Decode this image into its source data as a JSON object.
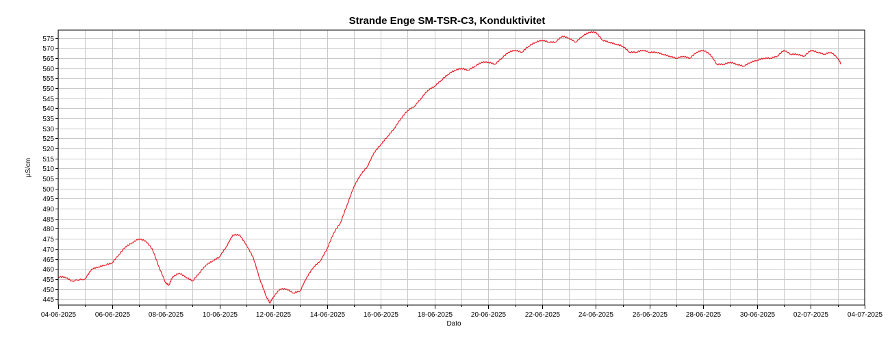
{
  "chart_data": {
    "type": "line",
    "title": "Strande Enge SM-TSR-C3, Konduktivitet",
    "xlabel": "Dato",
    "ylabel": "µS/cm",
    "ylim": [
      442,
      579
    ],
    "xlim": [
      "2025-06-04",
      "2025-07-04"
    ],
    "y_ticks": [
      445,
      450,
      455,
      460,
      465,
      470,
      475,
      480,
      485,
      490,
      495,
      500,
      505,
      510,
      515,
      520,
      525,
      530,
      535,
      540,
      545,
      550,
      555,
      560,
      565,
      570,
      575
    ],
    "x_ticks": [
      "04-06-2025",
      "06-06-2025",
      "08-06-2025",
      "10-06-2025",
      "12-06-2025",
      "14-06-2025",
      "16-06-2025",
      "18-06-2025",
      "20-06-2025",
      "22-06-2025",
      "24-06-2025",
      "26-06-2025",
      "28-06-2025",
      "30-06-2025",
      "02-07-2025",
      "04-07-2025"
    ],
    "grid": true,
    "series": [
      {
        "color": "#e8202a",
        "points": [
          [
            "2025-06-04T00:00",
            456
          ],
          [
            "2025-06-04T06:00",
            456
          ],
          [
            "2025-06-04T12:00",
            454
          ],
          [
            "2025-06-05T00:00",
            455
          ],
          [
            "2025-06-05T06:00",
            460
          ],
          [
            "2025-06-05T12:00",
            461
          ],
          [
            "2025-06-05T18:00",
            462
          ],
          [
            "2025-06-06T00:00",
            463
          ],
          [
            "2025-06-06T06:00",
            467
          ],
          [
            "2025-06-06T12:00",
            471
          ],
          [
            "2025-06-06T18:00",
            473
          ],
          [
            "2025-06-07T00:00",
            475
          ],
          [
            "2025-06-07T06:00",
            474
          ],
          [
            "2025-06-07T12:00",
            470
          ],
          [
            "2025-06-07T18:00",
            461
          ],
          [
            "2025-06-08T00:00",
            453
          ],
          [
            "2025-06-08T03:00",
            452
          ],
          [
            "2025-06-08T06:00",
            456
          ],
          [
            "2025-06-08T12:00",
            458
          ],
          [
            "2025-06-08T18:00",
            456
          ],
          [
            "2025-06-09T00:00",
            454
          ],
          [
            "2025-06-09T06:00",
            458
          ],
          [
            "2025-06-09T12:00",
            462
          ],
          [
            "2025-06-09T18:00",
            464
          ],
          [
            "2025-06-10T00:00",
            466
          ],
          [
            "2025-06-10T06:00",
            471
          ],
          [
            "2025-06-10T12:00",
            477
          ],
          [
            "2025-06-10T18:00",
            477
          ],
          [
            "2025-06-11T00:00",
            472
          ],
          [
            "2025-06-11T06:00",
            466
          ],
          [
            "2025-06-11T12:00",
            455
          ],
          [
            "2025-06-11T18:00",
            446
          ],
          [
            "2025-06-11T21:00",
            443
          ],
          [
            "2025-06-12T00:00",
            446
          ],
          [
            "2025-06-12T06:00",
            450
          ],
          [
            "2025-06-12T12:00",
            450
          ],
          [
            "2025-06-12T18:00",
            448
          ],
          [
            "2025-06-13T00:00",
            449
          ],
          [
            "2025-06-13T06:00",
            456
          ],
          [
            "2025-06-13T12:00",
            461
          ],
          [
            "2025-06-13T18:00",
            464
          ],
          [
            "2025-06-14T00:00",
            470
          ],
          [
            "2025-06-14T06:00",
            478
          ],
          [
            "2025-06-14T12:00",
            483
          ],
          [
            "2025-06-14T18:00",
            492
          ],
          [
            "2025-06-15T00:00",
            501
          ],
          [
            "2025-06-15T06:00",
            507
          ],
          [
            "2025-06-15T12:00",
            511
          ],
          [
            "2025-06-15T18:00",
            518
          ],
          [
            "2025-06-16T00:00",
            522
          ],
          [
            "2025-06-16T06:00",
            526
          ],
          [
            "2025-06-16T12:00",
            530
          ],
          [
            "2025-06-16T18:00",
            535
          ],
          [
            "2025-06-17T00:00",
            539
          ],
          [
            "2025-06-17T06:00",
            541
          ],
          [
            "2025-06-17T12:00",
            545
          ],
          [
            "2025-06-17T18:00",
            549
          ],
          [
            "2025-06-18T00:00",
            551
          ],
          [
            "2025-06-18T06:00",
            554
          ],
          [
            "2025-06-18T12:00",
            557
          ],
          [
            "2025-06-18T18:00",
            559
          ],
          [
            "2025-06-19T00:00",
            560
          ],
          [
            "2025-06-19T06:00",
            559
          ],
          [
            "2025-06-19T12:00",
            561
          ],
          [
            "2025-06-19T18:00",
            563
          ],
          [
            "2025-06-20T00:00",
            563
          ],
          [
            "2025-06-20T06:00",
            562
          ],
          [
            "2025-06-20T12:00",
            565
          ],
          [
            "2025-06-20T18:00",
            568
          ],
          [
            "2025-06-21T00:00",
            569
          ],
          [
            "2025-06-21T06:00",
            568
          ],
          [
            "2025-06-21T12:00",
            571
          ],
          [
            "2025-06-21T18:00",
            573
          ],
          [
            "2025-06-22T00:00",
            574
          ],
          [
            "2025-06-22T06:00",
            573
          ],
          [
            "2025-06-22T12:00",
            573
          ],
          [
            "2025-06-22T18:00",
            576
          ],
          [
            "2025-06-23T00:00",
            575
          ],
          [
            "2025-06-23T06:00",
            573
          ],
          [
            "2025-06-23T12:00",
            576
          ],
          [
            "2025-06-23T18:00",
            578
          ],
          [
            "2025-06-24T00:00",
            578
          ],
          [
            "2025-06-24T06:00",
            574
          ],
          [
            "2025-06-24T12:00",
            573
          ],
          [
            "2025-06-24T18:00",
            572
          ],
          [
            "2025-06-25T00:00",
            571
          ],
          [
            "2025-06-25T06:00",
            568
          ],
          [
            "2025-06-25T12:00",
            568
          ],
          [
            "2025-06-25T18:00",
            569
          ],
          [
            "2025-06-26T00:00",
            568
          ],
          [
            "2025-06-26T06:00",
            568
          ],
          [
            "2025-06-26T12:00",
            567
          ],
          [
            "2025-06-26T18:00",
            566
          ],
          [
            "2025-06-27T00:00",
            565
          ],
          [
            "2025-06-27T06:00",
            566
          ],
          [
            "2025-06-27T12:00",
            565
          ],
          [
            "2025-06-27T18:00",
            568
          ],
          [
            "2025-06-28T00:00",
            569
          ],
          [
            "2025-06-28T06:00",
            567
          ],
          [
            "2025-06-28T12:00",
            562
          ],
          [
            "2025-06-28T18:00",
            562
          ],
          [
            "2025-06-29T00:00",
            563
          ],
          [
            "2025-06-29T06:00",
            562
          ],
          [
            "2025-06-29T12:00",
            561
          ],
          [
            "2025-06-29T18:00",
            563
          ],
          [
            "2025-06-30T00:00",
            564
          ],
          [
            "2025-06-30T06:00",
            565
          ],
          [
            "2025-06-30T12:00",
            565
          ],
          [
            "2025-06-30T18:00",
            566
          ],
          [
            "2025-07-01T00:00",
            569
          ],
          [
            "2025-07-01T06:00",
            567
          ],
          [
            "2025-07-01T12:00",
            567
          ],
          [
            "2025-07-01T18:00",
            566
          ],
          [
            "2025-07-02T00:00",
            569
          ],
          [
            "2025-07-02T06:00",
            568
          ],
          [
            "2025-07-02T12:00",
            567
          ],
          [
            "2025-07-02T18:00",
            568
          ],
          [
            "2025-07-03T00:00",
            565
          ],
          [
            "2025-07-03T03:00",
            562
          ]
        ]
      }
    ]
  }
}
